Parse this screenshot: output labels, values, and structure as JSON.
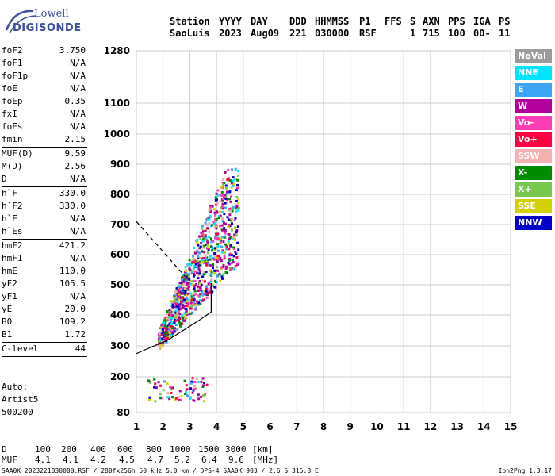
{
  "logo": {
    "line1": "Lowell",
    "line2": "DIGISONDE"
  },
  "header": {
    "row1": [
      "Station",
      "YYYY",
      "DAY",
      "DDD",
      "HHMMSS",
      "P1",
      "FFS",
      "S",
      "AXN",
      "PPS",
      "IGA",
      "PS"
    ],
    "row2": [
      "SaoLuis",
      "2023",
      "Aug09",
      "221",
      "030000",
      "RSF",
      "",
      "1",
      "715",
      "100",
      "00-",
      "11"
    ]
  },
  "params": {
    "group1": [
      {
        "label": "foF2",
        "value": "3.750"
      },
      {
        "label": "foF1",
        "value": "N/A"
      },
      {
        "label": "foF1p",
        "value": "N/A"
      },
      {
        "label": "foE",
        "value": "N/A"
      },
      {
        "label": "foEp",
        "value": "0.35"
      },
      {
        "label": "fxI",
        "value": "N/A"
      },
      {
        "label": "foEs",
        "value": "N/A"
      },
      {
        "label": "fmin",
        "value": "2.15"
      }
    ],
    "group2": [
      {
        "label": "MUF(D)",
        "value": "9.59"
      },
      {
        "label": "M(D)",
        "value": "2.56"
      },
      {
        "label": "D",
        "value": "N/A"
      }
    ],
    "group3": [
      {
        "label": "h`F",
        "value": "330.0"
      },
      {
        "label": "h`F2",
        "value": "330.0"
      },
      {
        "label": "h`E",
        "value": "N/A"
      },
      {
        "label": "h`Es",
        "value": "N/A"
      }
    ],
    "group4": [
      {
        "label": "hmF2",
        "value": "421.2"
      },
      {
        "label": "hmF1",
        "value": "N/A"
      },
      {
        "label": "hmE",
        "value": "110.0"
      },
      {
        "label": "yF2",
        "value": "105.5"
      },
      {
        "label": "yF1",
        "value": "N/A"
      },
      {
        "label": "yE",
        "value": "20.0"
      },
      {
        "label": "B0",
        "value": "109.2"
      },
      {
        "label": "B1",
        "value": "1.72"
      }
    ],
    "group5": [
      {
        "label": "C-level",
        "value": "44"
      }
    ]
  },
  "auto": {
    "line1": "Auto:",
    "line2": "Artist5",
    "line3": "500200"
  },
  "legend": [
    {
      "label": "NoVal",
      "bg": "#9b9b9b",
      "fg": "#ffffff"
    },
    {
      "label": "NNE",
      "bg": "#00e5ff",
      "fg": "#ffffff"
    },
    {
      "label": "E",
      "bg": "#3da5f5",
      "fg": "#ffffff"
    },
    {
      "label": "W",
      "bg": "#b3009b",
      "fg": "#ffffff"
    },
    {
      "label": "Vo-",
      "bg": "#ff3cb4",
      "fg": "#ffffff"
    },
    {
      "label": "Vo+",
      "bg": "#ff0040",
      "fg": "#ffffff"
    },
    {
      "label": "SSW",
      "bg": "#f5b0b0",
      "fg": "#ffffff"
    },
    {
      "label": "X-",
      "bg": "#008c00",
      "fg": "#ffffff"
    },
    {
      "label": "X+",
      "bg": "#78c850",
      "fg": "#ffffff"
    },
    {
      "label": "SSE",
      "bg": "#d2d200",
      "fg": "#ffffff"
    },
    {
      "label": "NNW",
      "bg": "#0000c8",
      "fg": "#ffffff"
    }
  ],
  "muf_table": {
    "d_label": "D",
    "d_values": [
      "100",
      "200",
      "400",
      "600",
      "800",
      "1000",
      "1500",
      "3000"
    ],
    "d_unit": "[km]",
    "muf_label": "MUF",
    "muf_values": [
      "4.1",
      "4.1",
      "4.2",
      "4.5",
      "4.7",
      "5.2",
      "6.4",
      "9.6"
    ],
    "muf_unit": "[MHz]"
  },
  "footer": {
    "left": "SAA0K_2023221030000.RSF / 280fx256h 50 kHz 5.0 km / DPS-4 SAA0K 903 / 2.6 S 315.8 E",
    "right": "Ion2Png 1.3.17"
  },
  "chart_data": {
    "type": "scatter",
    "xlim": [
      1,
      15
    ],
    "x_ticks": [
      "1",
      "2",
      "3",
      "4",
      "5",
      "6",
      "7",
      "8",
      "9",
      "10",
      "11",
      "12",
      "13",
      "14",
      "15"
    ],
    "y_ticks": [
      "80",
      "200",
      "300",
      "400",
      "500",
      "600",
      "700",
      "800",
      "900",
      "1000",
      "1100",
      "1280"
    ],
    "y_tick_values": [
      80,
      200,
      300,
      400,
      500,
      600,
      700,
      800,
      900,
      1000,
      1100,
      1280
    ],
    "grid": true,
    "clusters": [
      {
        "name": "F-trace",
        "x_range": [
          1.8,
          4.8
        ],
        "h_range": [
          290,
          890
        ]
      },
      {
        "name": "Es-trace",
        "x_range": [
          1.4,
          3.6
        ],
        "h_range": [
          120,
          200
        ]
      }
    ],
    "profile_solid": [
      [
        1,
        275
      ],
      [
        2.2,
        320
      ],
      [
        3.3,
        380
      ],
      [
        3.8,
        410
      ],
      [
        3.8,
        505
      ]
    ],
    "profile_dashed": [
      [
        1,
        710
      ],
      [
        2.1,
        600
      ],
      [
        2.9,
        520
      ]
    ]
  }
}
